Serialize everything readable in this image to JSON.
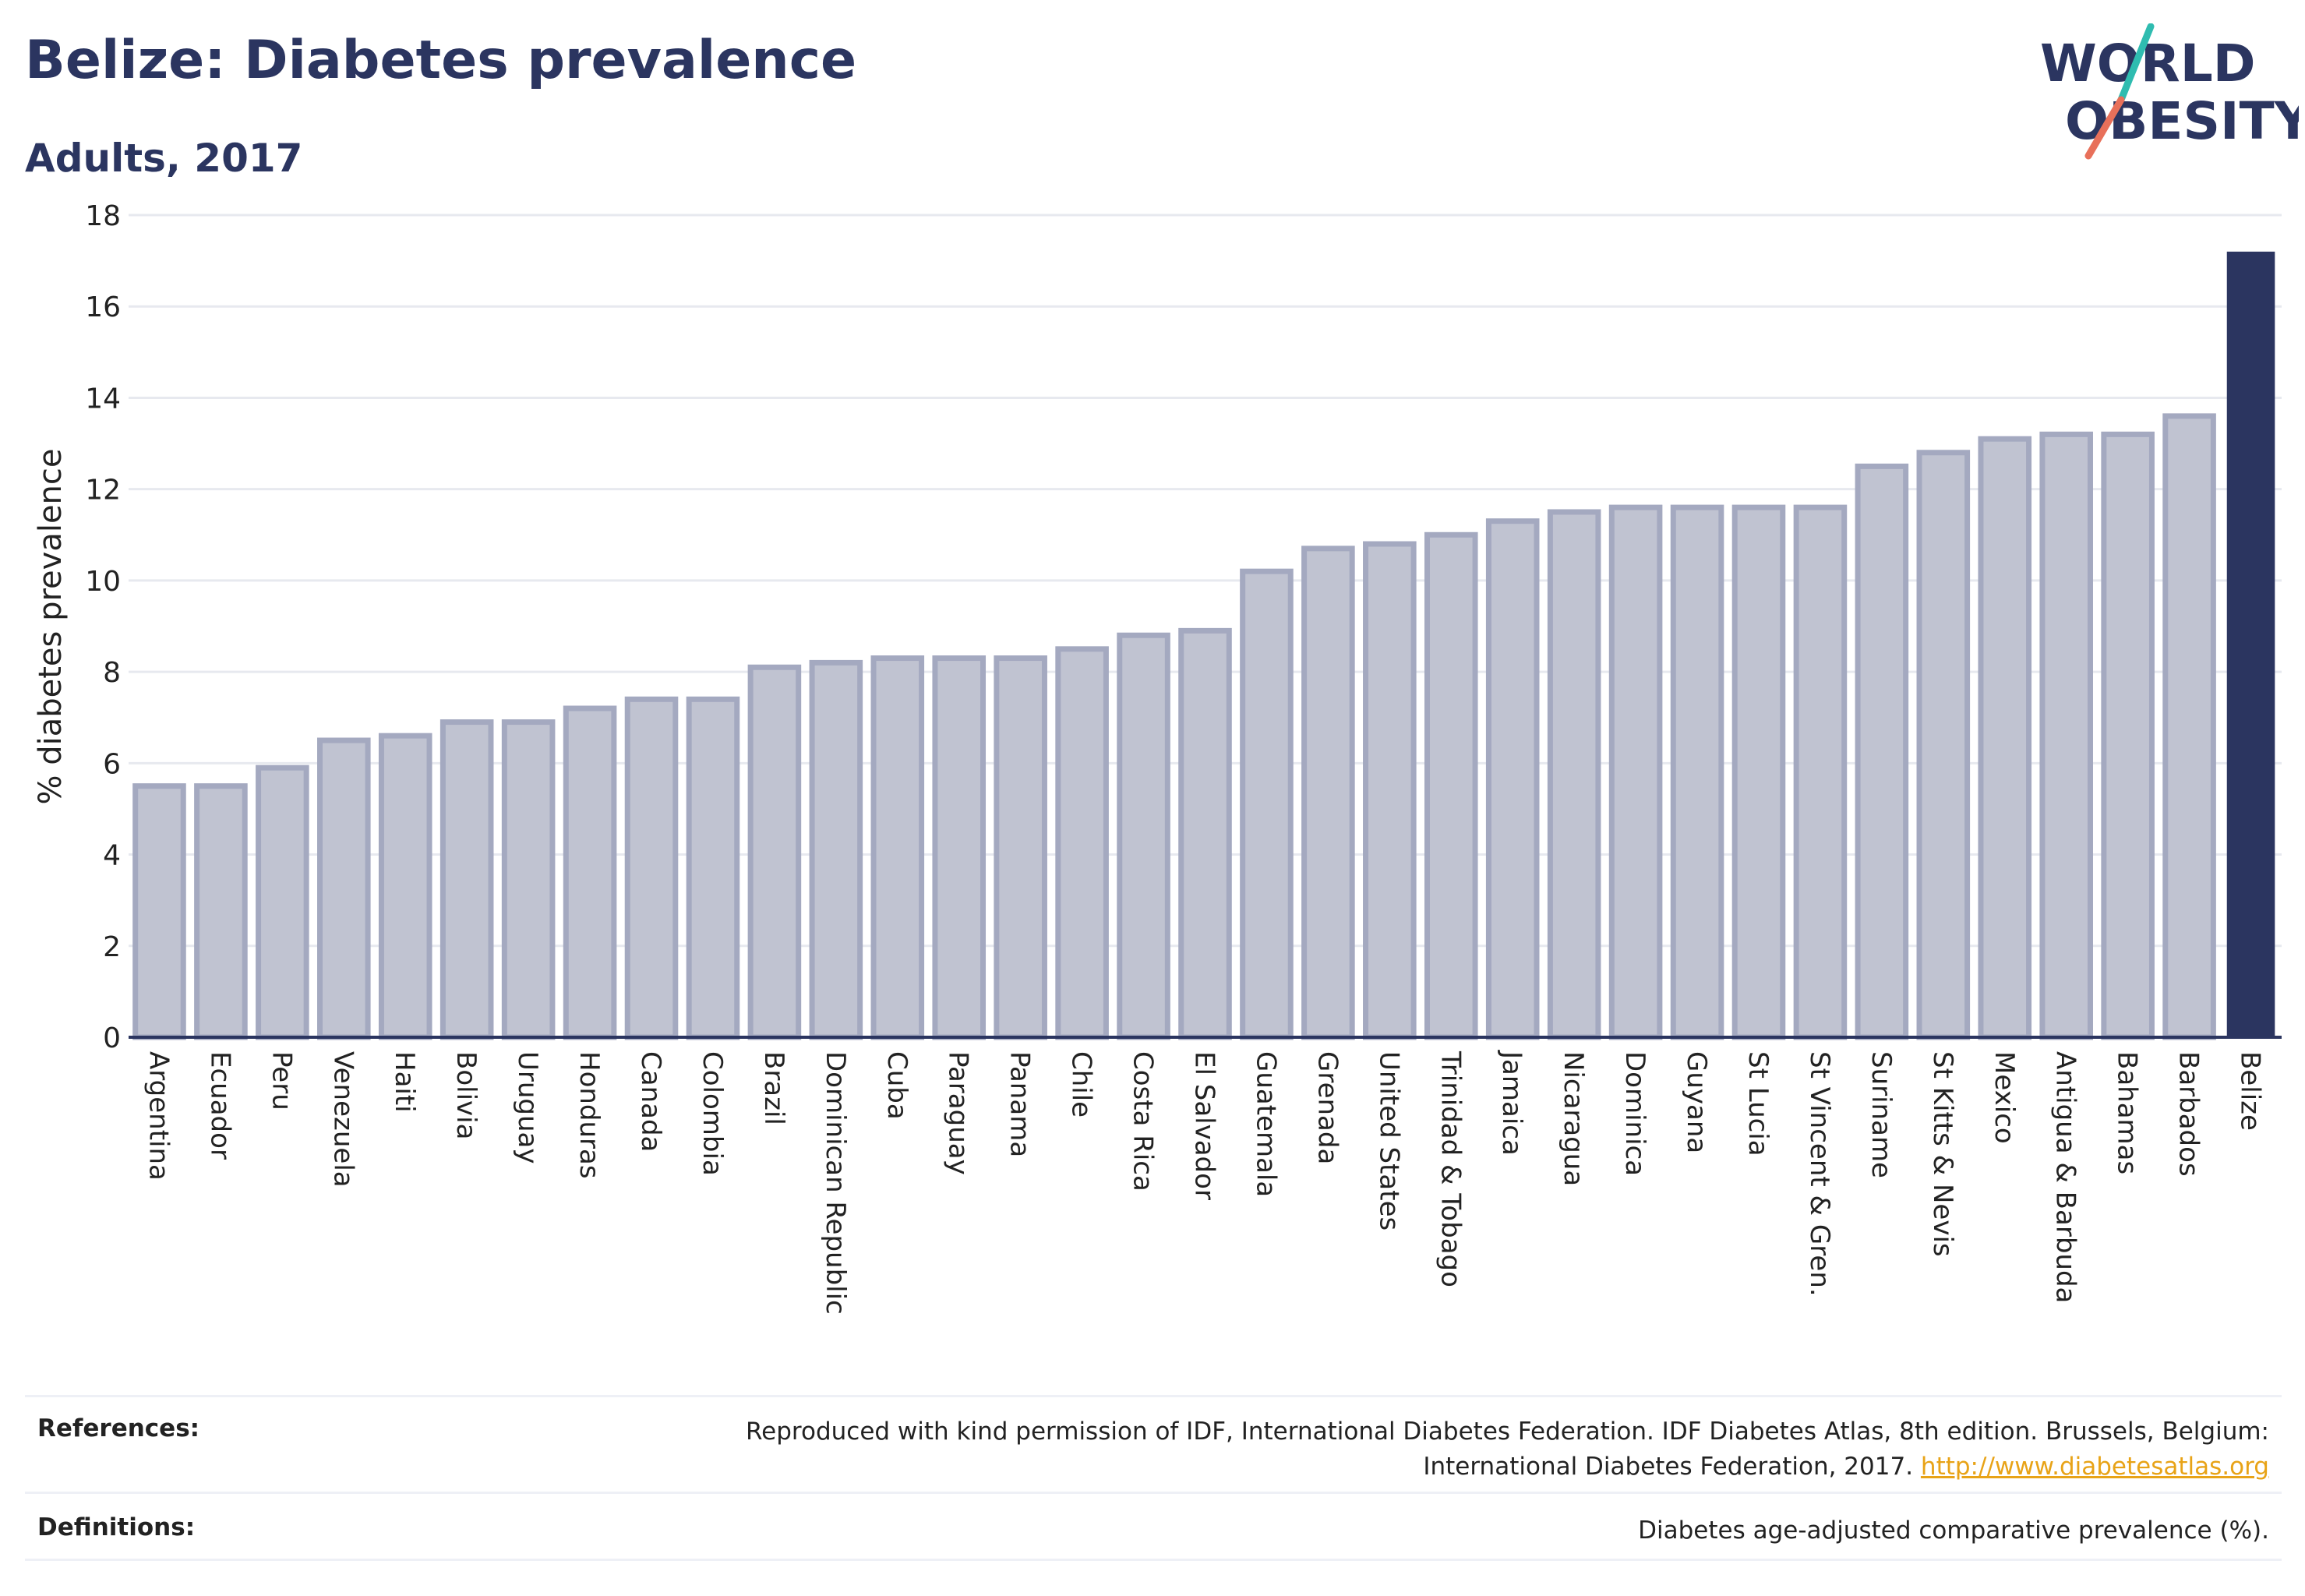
{
  "header": {
    "title": "Belize: Diabetes prevalence",
    "subtitle": "Adults, 2017"
  },
  "logo": {
    "line1": "WORLD",
    "line2": "OBESITY"
  },
  "chart_data": {
    "type": "bar",
    "ylabel": "% diabetes prevalence",
    "xlabel": "",
    "ylim": [
      0,
      18
    ],
    "yticks": [
      0,
      2,
      4,
      6,
      8,
      10,
      12,
      14,
      16,
      18
    ],
    "grid": true,
    "highlight_category": "Belize",
    "categories": [
      "Argentina",
      "Ecuador",
      "Peru",
      "Venezuela",
      "Haiti",
      "Bolivia",
      "Uruguay",
      "Honduras",
      "Canada",
      "Colombia",
      "Brazil",
      "Dominican Republic",
      "Cuba",
      "Paraguay",
      "Panama",
      "Chile",
      "Costa Rica",
      "El Salvador",
      "Guatemala",
      "Grenada",
      "United States",
      "Trinidad & Tobago",
      "Jamaica",
      "Nicaragua",
      "Dominica",
      "Guyana",
      "St Lucia",
      "St Vincent & Gren.",
      "Suriname",
      "St Kitts & Nevis",
      "Mexico",
      "Antigua & Barbuda",
      "Bahamas",
      "Barbados",
      "Belize"
    ],
    "values": [
      5.5,
      5.5,
      5.9,
      6.5,
      6.6,
      6.9,
      6.9,
      7.2,
      7.4,
      7.4,
      8.1,
      8.2,
      8.3,
      8.3,
      8.3,
      8.5,
      8.8,
      8.9,
      10.2,
      10.7,
      10.8,
      11.0,
      11.3,
      11.5,
      11.6,
      11.6,
      11.6,
      11.6,
      12.5,
      12.8,
      13.1,
      13.2,
      13.2,
      13.6,
      17.2
    ]
  },
  "colors": {
    "bar": "#c0c3d1",
    "bar_stroke": "#a4a9c0",
    "highlight": "#2b3560",
    "title": "#2b3560",
    "logo_teal": "#2fbcb0",
    "logo_coral": "#e8705a"
  },
  "footer": {
    "references_label": "References:",
    "references_text_1": "Reproduced with kind permission of IDF, International Diabetes Federation. IDF Diabetes Atlas, 8th edition. Brussels, Belgium:",
    "references_text_2": "International Diabetes Federation, 2017.",
    "references_link": "http://www.diabetesatlas.org",
    "definitions_label": "Definitions:",
    "definitions_text": "Diabetes age-adjusted comparative prevalence (%)."
  }
}
